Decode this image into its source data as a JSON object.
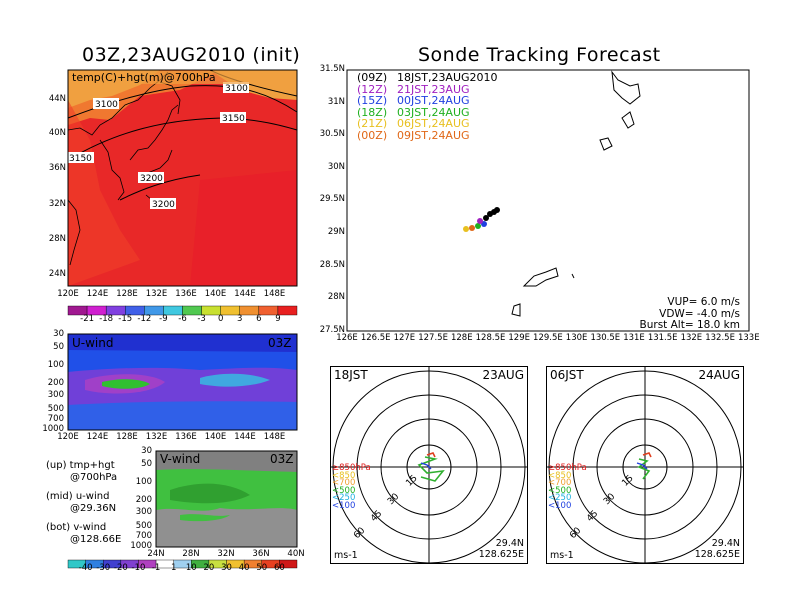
{
  "left_panel": {
    "title": "03Z,23AUG2010 (init)",
    "map_label": "temp(C)+hgt(m)@700hPa",
    "contours": [
      "3100",
      "3100",
      "3150",
      "3150",
      "3200",
      "3200"
    ],
    "lat_ticks": [
      "44N",
      "40N",
      "36N",
      "32N",
      "28N",
      "24N"
    ],
    "lon_ticks": [
      "120E",
      "124E",
      "128E",
      "132E",
      "136E",
      "140E",
      "144E",
      "148E"
    ],
    "temp_colorbar": [
      "-21",
      "-18",
      "-15",
      "-12",
      "-9",
      "-6",
      "-3",
      "0",
      "3",
      "6",
      "9"
    ],
    "uwind": {
      "label": "U-wind",
      "time": "03Z",
      "pressure_ticks": [
        "30",
        "50",
        "100",
        "200",
        "300",
        "500",
        "700",
        "1000"
      ],
      "lon_ticks": [
        "120E",
        "124E",
        "128E",
        "132E",
        "136E",
        "140E",
        "144E",
        "148E"
      ]
    },
    "vwind": {
      "label": "V-wind",
      "time": "03Z",
      "pressure_ticks": [
        "30",
        "50",
        "100",
        "200",
        "300",
        "500",
        "700",
        "1000"
      ],
      "lat_ticks": [
        "24N",
        "28N",
        "32N",
        "36N",
        "40N"
      ]
    },
    "wind_colorbar": [
      "-40",
      "-30",
      "-20",
      "-10",
      "-1",
      "1",
      "10",
      "20",
      "30",
      "40",
      "50",
      "60"
    ],
    "legend": [
      {
        "line1": "(up) tmp+hgt",
        "line2": "@700hPa"
      },
      {
        "line1": "(mid) u-wind",
        "line2": "@29.36N"
      },
      {
        "line1": "(bot) v-wind",
        "line2": "@128.66E"
      }
    ]
  },
  "right_panel": {
    "title": "Sonde Tracking Forecast",
    "lat_ticks": [
      "31.5N",
      "31N",
      "30.5N",
      "30N",
      "29.5N",
      "29N",
      "28.5N",
      "28N",
      "27.5N"
    ],
    "lon_ticks": [
      "126E",
      "126.5E",
      "127E",
      "127.5E",
      "128E",
      "128.5E",
      "129E",
      "129.5E",
      "130E",
      "130.5E",
      "131E",
      "131.5E",
      "132E",
      "132.5E",
      "133E"
    ],
    "forecast_times": [
      {
        "z": "(09Z)",
        "jst": "18JST,23AUG2010",
        "color": "#000000"
      },
      {
        "z": "(12Z)",
        "jst": "21JST,23AUG",
        "color": "#a020c0"
      },
      {
        "z": "(15Z)",
        "jst": "00JST,24AUG",
        "color": "#2040e0"
      },
      {
        "z": "(18Z)",
        "jst": "03JST,24AUG",
        "color": "#20b020"
      },
      {
        "z": "(21Z)",
        "jst": "06JST,24AUG",
        "color": "#e8c020"
      },
      {
        "z": "(00Z)",
        "jst": "09JST,24AUG",
        "color": "#e06818"
      }
    ],
    "params": {
      "vup": "VUP= 6.0 m/s",
      "vdw": "VDW= -4.0 m/s",
      "burst": "Burst Alt= 18.0 km"
    },
    "hodographs": [
      {
        "time": "18JST",
        "date": "23AUG",
        "rings": [
          "15",
          "30",
          "45",
          "60"
        ],
        "levels": [
          {
            "text": "≥850hPa",
            "color": "#e02020"
          },
          {
            "text": "<850",
            "color": "#e8c020"
          },
          {
            "text": "<700",
            "color": "#f0a030"
          },
          {
            "text": "<500",
            "color": "#20b020"
          },
          {
            "text": "<250",
            "color": "#20b0e0"
          },
          {
            "text": "<100",
            "color": "#2040e0"
          }
        ],
        "units": "ms-1",
        "lat": "29.4N",
        "lon": "128.625E"
      },
      {
        "time": "06JST",
        "date": "24AUG",
        "rings": [
          "15",
          "30",
          "45",
          "60"
        ],
        "levels": [
          {
            "text": "≥850hPa",
            "color": "#e02020"
          },
          {
            "text": "<850",
            "color": "#e8c020"
          },
          {
            "text": "<700",
            "color": "#f0a030"
          },
          {
            "text": "<500",
            "color": "#20b020"
          },
          {
            "text": "<250",
            "color": "#20b0e0"
          },
          {
            "text": "<100",
            "color": "#2040e0"
          }
        ],
        "units": "ms-1",
        "lat": "29.4N",
        "lon": "128.625E"
      }
    ]
  }
}
